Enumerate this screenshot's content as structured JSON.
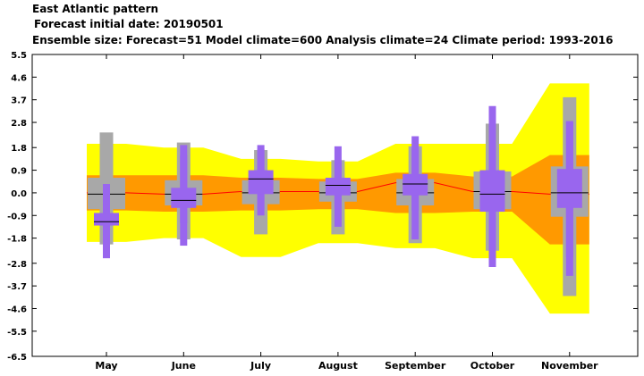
{
  "header": {
    "title": "East Atlantic pattern",
    "line2": "Forecast initial date: 20190501",
    "line3": "Ensemble size: Forecast=51 Model climate=600 Analysis climate=24   Climate period: 1993-2016"
  },
  "chart_data": {
    "type": "box",
    "categories": [
      "May",
      "June",
      "July",
      "August",
      "September",
      "October",
      "November"
    ],
    "y_ticks": [
      5.5,
      4.6,
      3.7,
      2.8,
      1.8,
      0.9,
      0.0,
      -0.9,
      -1.8,
      -2.8,
      -3.7,
      -4.6,
      -5.5,
      -6.5
    ],
    "y_tick_labels": [
      "5.5",
      "4.6",
      "3.7",
      "2.8",
      "1.8",
      "0.9",
      "0.0",
      "-0.9",
      "-1.8",
      "-2.8",
      "-3.7",
      "-4.6",
      "-5.5",
      "-6.5"
    ],
    "ylim": [
      -6.5,
      5.5
    ],
    "grid": false,
    "analysis_climate_outer": {
      "lower": [
        -1.95,
        -1.8,
        -2.55,
        -2.0,
        -2.2,
        -2.6,
        -4.8
      ],
      "upper": [
        1.95,
        1.8,
        1.35,
        1.25,
        1.95,
        1.95,
        4.35
      ]
    },
    "analysis_climate_inner": {
      "lower": [
        -0.7,
        -0.75,
        -0.7,
        -0.65,
        -0.8,
        -0.75,
        -2.05
      ],
      "upper": [
        0.7,
        0.7,
        0.6,
        0.55,
        0.8,
        0.65,
        1.5
      ]
    },
    "climate_median": [
      0.0,
      -0.05,
      0.05,
      0.05,
      0.4,
      0.05,
      -0.05
    ],
    "model_climate": {
      "min": [
        -2.05,
        -1.85,
        -1.65,
        -1.65,
        -2.0,
        -2.3,
        -4.1
      ],
      "q1": [
        -0.65,
        -0.5,
        -0.45,
        -0.35,
        -0.5,
        -0.65,
        -0.95
      ],
      "median": [
        -0.05,
        -0.05,
        0.0,
        0.0,
        0.0,
        0.05,
        0.0
      ],
      "q3": [
        0.6,
        0.5,
        0.5,
        0.45,
        0.55,
        0.85,
        1.05
      ],
      "max": [
        2.4,
        2.0,
        1.7,
        1.3,
        1.85,
        2.75,
        3.8
      ]
    },
    "forecast": {
      "min": [
        -2.6,
        -2.1,
        -0.9,
        -1.35,
        -1.85,
        -2.95,
        -3.3
      ],
      "p10": [
        -1.35,
        -1.2,
        -0.65,
        -0.6,
        -0.7,
        -1.75,
        -2.55
      ],
      "q1": [
        -1.3,
        -0.6,
        -0.05,
        -0.1,
        -0.1,
        -0.75,
        -0.6
      ],
      "median": [
        -1.15,
        -0.3,
        0.55,
        0.3,
        0.35,
        -0.05,
        0.0
      ],
      "q3": [
        -0.8,
        0.2,
        0.9,
        0.6,
        0.75,
        0.9,
        0.95
      ],
      "p90": [
        0.35,
        1.5,
        1.75,
        1.2,
        1.75,
        2.75,
        2.85
      ],
      "max": [
        0.35,
        1.9,
        1.9,
        1.85,
        2.25,
        3.45,
        2.85
      ]
    },
    "colors": {
      "outer_band": "#ffff00",
      "inner_band": "#ff9900",
      "median_line": "#ff0000",
      "model_box": "#a8a8a8",
      "forecast_box": "#9966ee",
      "median_tick": "#000000"
    }
  }
}
